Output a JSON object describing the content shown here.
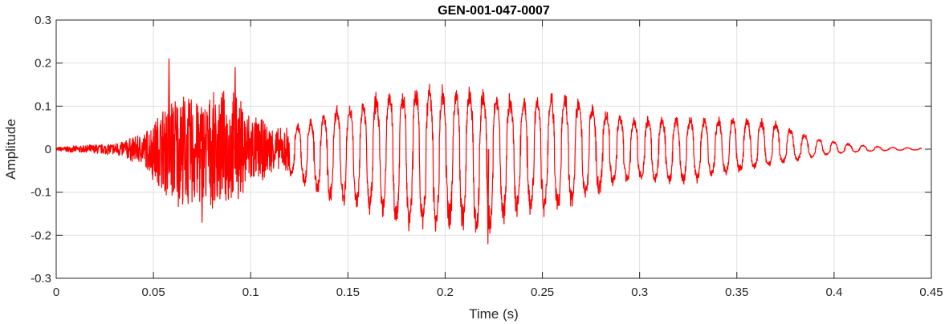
{
  "chart_data": {
    "type": "line",
    "title": "GEN-001-047-0007",
    "xlabel": "Time (s)",
    "ylabel": "Amplitude",
    "xlim": [
      0,
      0.45
    ],
    "ylim": [
      -0.3,
      0.3
    ],
    "xticks": [
      0,
      0.05,
      0.1,
      0.15,
      0.2,
      0.25,
      0.3,
      0.35,
      0.4,
      0.45
    ],
    "xtick_labels": [
      "0",
      "0.05",
      "0.1",
      "0.15",
      "0.2",
      "0.25",
      "0.3",
      "0.35",
      "0.4",
      "0.45"
    ],
    "yticks": [
      -0.3,
      -0.2,
      -0.1,
      0,
      0.1,
      0.2,
      0.3
    ],
    "ytick_labels": [
      "-0.3",
      "-0.2",
      "-0.1",
      "0",
      "0.1",
      "0.2",
      "0.3"
    ],
    "grid": true,
    "box": true,
    "line_color": "#ff0000",
    "series": [
      {
        "duration_s": 0.445,
        "envelope_time": [
          0,
          0.03,
          0.045,
          0.05,
          0.06,
          0.07,
          0.08,
          0.09,
          0.1,
          0.11,
          0.115,
          0.12,
          0.13,
          0.14,
          0.15,
          0.16,
          0.17,
          0.18,
          0.19,
          0.2,
          0.21,
          0.22,
          0.23,
          0.24,
          0.25,
          0.26,
          0.27,
          0.28,
          0.29,
          0.3,
          0.31,
          0.32,
          0.33,
          0.34,
          0.35,
          0.36,
          0.37,
          0.38,
          0.39,
          0.4,
          0.41,
          0.42,
          0.43,
          0.445
        ],
        "envelope_max": [
          0.005,
          0.015,
          0.04,
          0.07,
          0.14,
          0.13,
          0.13,
          0.15,
          0.09,
          0.06,
          0.05,
          0.06,
          0.07,
          0.1,
          0.11,
          0.13,
          0.15,
          0.15,
          0.16,
          0.16,
          0.15,
          0.15,
          0.14,
          0.13,
          0.14,
          0.14,
          0.13,
          0.1,
          0.09,
          0.08,
          0.08,
          0.08,
          0.08,
          0.08,
          0.08,
          0.08,
          0.07,
          0.05,
          0.03,
          0.02,
          0.012,
          0.008,
          0.005,
          0.003
        ],
        "envelope_min": [
          -0.005,
          -0.015,
          -0.04,
          -0.08,
          -0.14,
          -0.15,
          -0.14,
          -0.14,
          -0.1,
          -0.06,
          -0.05,
          -0.07,
          -0.1,
          -0.13,
          -0.14,
          -0.16,
          -0.18,
          -0.2,
          -0.21,
          -0.2,
          -0.2,
          -0.22,
          -0.18,
          -0.16,
          -0.16,
          -0.15,
          -0.13,
          -0.11,
          -0.09,
          -0.08,
          -0.09,
          -0.09,
          -0.08,
          -0.07,
          -0.06,
          -0.05,
          -0.04,
          -0.03,
          -0.02,
          -0.012,
          -0.008,
          -0.005,
          -0.003,
          -0.002
        ],
        "peaks": [
          {
            "x": 0.058,
            "y": 0.21
          },
          {
            "x": 0.092,
            "y": 0.19
          },
          {
            "x": 0.075,
            "y": -0.17
          },
          {
            "x": 0.222,
            "y": -0.22
          }
        ]
      }
    ]
  }
}
